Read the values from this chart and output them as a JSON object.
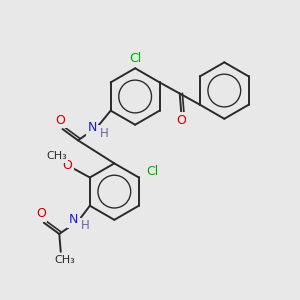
{
  "background_color": "#e8e8e8",
  "bond_color": "#2a2a2a",
  "atom_colors": {
    "C": "#2a2a2a",
    "N": "#1a1aee",
    "O": "#cc0000",
    "Cl": "#00aa00",
    "H": "#6666aa"
  },
  "figure_size": [
    3.0,
    3.0
  ],
  "dpi": 100
}
